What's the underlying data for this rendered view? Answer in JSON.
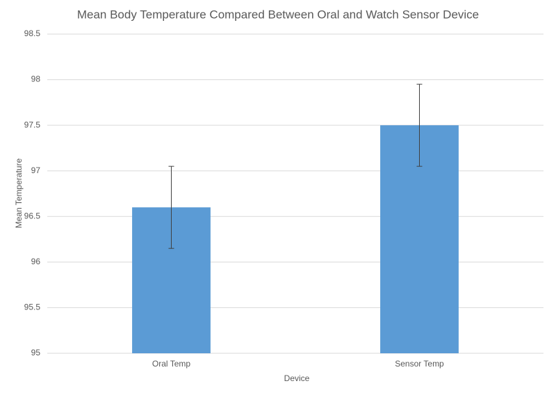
{
  "chart_data": {
    "type": "bar",
    "title": "Mean Body Temperature Compared Between Oral and Watch Sensor Device",
    "x_label": "Device",
    "y_label": "Mean Temperature",
    "categories": [
      "Oral Temp",
      "Sensor Temp"
    ],
    "values": [
      96.6,
      97.5
    ],
    "errors": [
      0.45,
      0.45
    ],
    "color": "#5b9bd5",
    "ylim": [
      95,
      98.5
    ],
    "yticks": [
      95,
      95.5,
      96,
      96.5,
      97,
      97.5,
      98,
      98.5
    ],
    "grid": true
  }
}
